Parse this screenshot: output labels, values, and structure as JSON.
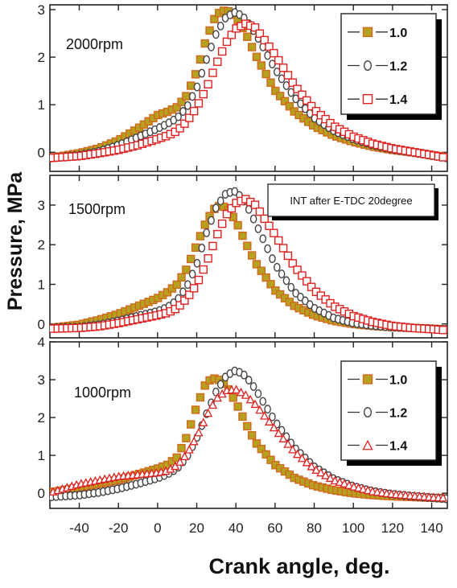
{
  "chart_data": {
    "type": "scatter",
    "xlabel": "Crank angle, deg.",
    "ylabel": "Pressure, MPa",
    "xlim": [
      -55,
      148
    ],
    "xticks": [
      -40,
      -20,
      0,
      20,
      40,
      60,
      80,
      100,
      120,
      140
    ],
    "x_tick_labels": [
      "-40",
      "-20",
      "0",
      "20",
      "40",
      "60",
      "80",
      "100",
      "120",
      "140"
    ],
    "shared_x_axis": true,
    "panels": [
      {
        "label": "2000rpm",
        "ylim": [
          -0.4,
          3.1
        ],
        "yticks": [
          0,
          1,
          2,
          3
        ],
        "y_tick_labels": [
          "0",
          "1",
          "2",
          "3"
        ],
        "annotation": "",
        "legend": {
          "placement": "top-right",
          "entries": [
            {
              "label": "1.0",
              "marker": "square",
              "color": "#b5a020",
              "edge": "#d2691e"
            },
            {
              "label": "1.2",
              "marker": "circle",
              "color": "#ffffff",
              "edge": "#444444"
            },
            {
              "label": "1.4",
              "marker": "square",
              "color": "#ffffff",
              "edge": "#e02020"
            }
          ]
        },
        "series": [
          {
            "name": "1.0",
            "marker": "square",
            "fill": "#b5a020",
            "edge": "#d2691e",
            "x": [
              -55,
              -40,
              -30,
              -20,
              -10,
              0,
              5,
              10,
              15,
              20,
              25,
              30,
              35,
              40,
              45,
              50,
              60,
              70,
              80,
              90,
              100,
              110,
              120,
              130,
              140,
              148
            ],
            "y": [
              -0.12,
              -0.02,
              0.08,
              0.25,
              0.5,
              0.78,
              0.85,
              0.95,
              1.2,
              1.7,
              2.4,
              2.9,
              3.0,
              2.85,
              2.5,
              2.05,
              1.3,
              0.85,
              0.55,
              0.35,
              0.22,
              0.12,
              0.05,
              0.0,
              -0.06,
              -0.1
            ]
          },
          {
            "name": "1.2",
            "marker": "circle",
            "fill": "#ffffff",
            "edge": "#444444",
            "x": [
              -55,
              -40,
              -30,
              -20,
              -10,
              0,
              5,
              10,
              15,
              20,
              25,
              30,
              35,
              40,
              45,
              50,
              60,
              70,
              80,
              90,
              100,
              110,
              120,
              130,
              140,
              148
            ],
            "y": [
              -0.12,
              -0.06,
              0.02,
              0.15,
              0.32,
              0.5,
              0.6,
              0.72,
              0.95,
              1.35,
              1.95,
              2.5,
              2.85,
              2.95,
              2.8,
              2.5,
              1.75,
              1.15,
              0.72,
              0.45,
              0.28,
              0.15,
              0.06,
              0.0,
              -0.07,
              -0.12
            ]
          },
          {
            "name": "1.4",
            "marker": "square",
            "fill": "#ffffff",
            "edge": "#e02020",
            "x": [
              -55,
              -40,
              -30,
              -20,
              -10,
              0,
              5,
              10,
              15,
              20,
              25,
              30,
              35,
              40,
              45,
              50,
              60,
              70,
              80,
              90,
              100,
              110,
              120,
              130,
              140,
              148
            ],
            "y": [
              -0.12,
              -0.08,
              -0.02,
              0.05,
              0.15,
              0.28,
              0.35,
              0.45,
              0.65,
              0.95,
              1.35,
              1.85,
              2.3,
              2.6,
              2.7,
              2.62,
              2.05,
              1.4,
              0.9,
              0.55,
              0.33,
              0.18,
              0.08,
              0.01,
              -0.06,
              -0.12
            ]
          }
        ]
      },
      {
        "label": "1500rpm",
        "ylim": [
          -0.35,
          3.75
        ],
        "yticks": [
          0,
          1,
          2,
          3
        ],
        "y_tick_labels": [
          "0",
          "1",
          "2",
          "3"
        ],
        "annotation": "INT after E-TDC 20degree",
        "legend": null,
        "series": [
          {
            "name": "1.0",
            "marker": "square",
            "fill": "#b5a020",
            "edge": "#d2691e",
            "x": [
              -55,
              -40,
              -30,
              -20,
              -10,
              0,
              5,
              10,
              15,
              20,
              25,
              30,
              35,
              40,
              45,
              50,
              60,
              70,
              80,
              90,
              100,
              110,
              120,
              130,
              140,
              148
            ],
            "y": [
              -0.1,
              -0.02,
              0.1,
              0.25,
              0.45,
              0.65,
              0.8,
              1.0,
              1.4,
              2.0,
              2.6,
              2.98,
              2.95,
              2.6,
              2.05,
              1.55,
              0.85,
              0.45,
              0.22,
              0.08,
              0.0,
              -0.05,
              -0.08,
              -0.1,
              -0.12,
              -0.14
            ]
          },
          {
            "name": "1.2",
            "marker": "circle",
            "fill": "#ffffff",
            "edge": "#444444",
            "x": [
              -55,
              -40,
              -30,
              -20,
              -10,
              0,
              5,
              10,
              15,
              20,
              25,
              30,
              35,
              40,
              45,
              50,
              60,
              70,
              80,
              90,
              100,
              110,
              120,
              130,
              140,
              148
            ],
            "y": [
              -0.1,
              -0.08,
              -0.02,
              0.08,
              0.2,
              0.32,
              0.42,
              0.6,
              0.95,
              1.5,
              2.3,
              2.95,
              3.3,
              3.35,
              3.05,
              2.55,
              1.5,
              0.8,
              0.4,
              0.15,
              0.02,
              -0.04,
              -0.08,
              -0.1,
              -0.12,
              -0.14
            ]
          },
          {
            "name": "1.4",
            "marker": "square",
            "fill": "#ffffff",
            "edge": "#e02020",
            "x": [
              -55,
              -40,
              -30,
              -20,
              -10,
              0,
              5,
              10,
              15,
              20,
              25,
              30,
              35,
              40,
              45,
              50,
              60,
              70,
              80,
              90,
              100,
              110,
              120,
              130,
              140,
              148
            ],
            "y": [
              -0.12,
              -0.1,
              -0.06,
              0.02,
              0.12,
              0.22,
              0.28,
              0.4,
              0.65,
              1.0,
              1.55,
              2.2,
              2.75,
              3.05,
              3.15,
              3.0,
              2.25,
              1.45,
              0.85,
              0.45,
              0.2,
              0.05,
              -0.05,
              -0.1,
              -0.13,
              -0.16
            ]
          }
        ]
      },
      {
        "label": "1000rpm",
        "ylim": [
          -0.4,
          4.0
        ],
        "yticks": [
          0,
          1,
          2,
          3,
          4
        ],
        "y_tick_labels": [
          "0",
          "1",
          "2",
          "3",
          "4"
        ],
        "annotation": "",
        "legend": {
          "placement": "top-right",
          "entries": [
            {
              "label": "1.0",
              "marker": "square",
              "color": "#b5a020",
              "edge": "#d2691e"
            },
            {
              "label": "1.2",
              "marker": "circle",
              "color": "#ffffff",
              "edge": "#444444"
            },
            {
              "label": "1.4",
              "marker": "triangle",
              "color": "#ffffff",
              "edge": "#e02020"
            }
          ]
        },
        "series": [
          {
            "name": "1.0",
            "marker": "square",
            "fill": "#b5a020",
            "edge": "#d2691e",
            "x": [
              -55,
              -40,
              -30,
              -20,
              -10,
              0,
              5,
              10,
              15,
              20,
              25,
              30,
              35,
              40,
              45,
              50,
              60,
              70,
              80,
              90,
              100,
              110,
              120,
              130,
              140,
              148
            ],
            "y": [
              0.02,
              0.15,
              0.25,
              0.35,
              0.5,
              0.65,
              0.75,
              0.95,
              1.5,
              2.3,
              2.95,
              3.05,
              2.85,
              2.4,
              1.85,
              1.35,
              0.75,
              0.4,
              0.2,
              0.08,
              0.0,
              -0.05,
              -0.08,
              -0.1,
              -0.12,
              -0.14
            ]
          },
          {
            "name": "1.2",
            "marker": "circle",
            "fill": "#ffffff",
            "edge": "#444444",
            "x": [
              -55,
              -40,
              -30,
              -20,
              -10,
              0,
              5,
              10,
              15,
              20,
              25,
              30,
              35,
              40,
              45,
              50,
              60,
              70,
              80,
              90,
              100,
              110,
              120,
              130,
              140,
              148
            ],
            "y": [
              -0.1,
              -0.05,
              0.02,
              0.12,
              0.25,
              0.4,
              0.5,
              0.65,
              0.95,
              1.45,
              2.1,
              2.7,
              3.1,
              3.25,
              3.1,
              2.75,
              1.9,
              1.2,
              0.7,
              0.38,
              0.18,
              0.05,
              -0.03,
              -0.08,
              -0.12,
              -0.15
            ]
          },
          {
            "name": "1.4",
            "marker": "triangle",
            "fill": "#ffffff",
            "edge": "#e02020",
            "x": [
              -55,
              -40,
              -30,
              -20,
              -10,
              0,
              5,
              10,
              15,
              20,
              25,
              30,
              35,
              40,
              45,
              50,
              60,
              70,
              80,
              90,
              100,
              110,
              120,
              130,
              140,
              148
            ],
            "y": [
              0.02,
              0.25,
              0.35,
              0.45,
              0.5,
              0.55,
              0.6,
              0.75,
              1.05,
              1.5,
              2.05,
              2.5,
              2.72,
              2.75,
              2.6,
              2.35,
              1.7,
              1.1,
              0.65,
              0.35,
              0.18,
              0.05,
              -0.02,
              -0.06,
              -0.1,
              -0.12
            ]
          }
        ]
      }
    ]
  }
}
